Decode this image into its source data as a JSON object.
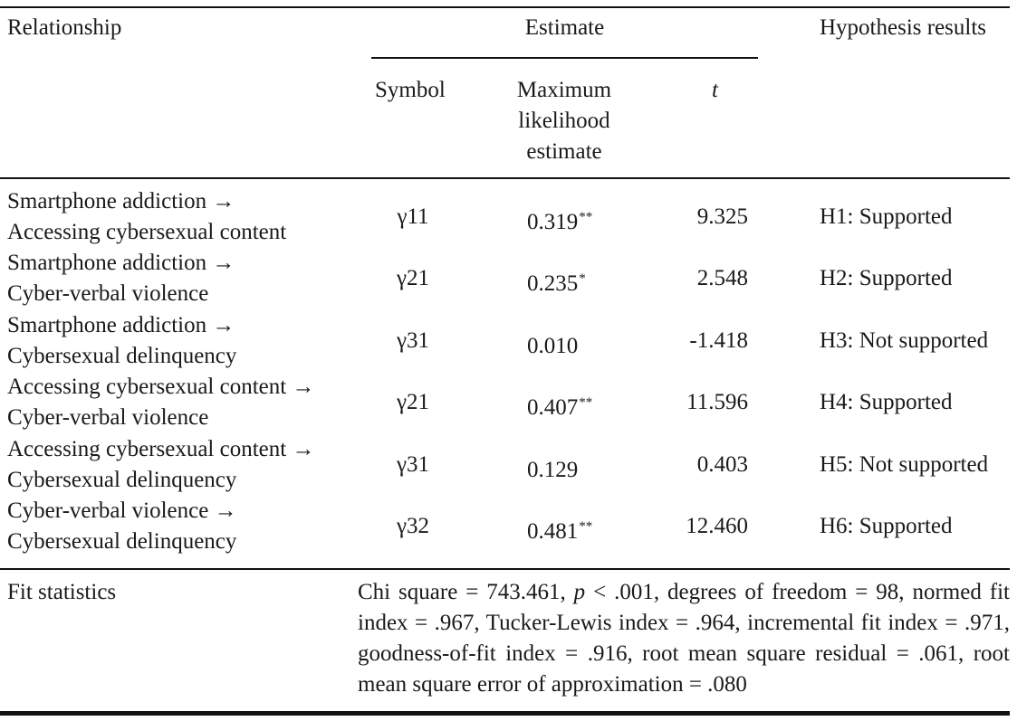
{
  "header": {
    "relationship": "Relationship",
    "estimate": "Estimate",
    "hypothesis_results": "Hypothesis results",
    "symbol": "Symbol",
    "mle": "Maximum likelihood estimate",
    "t": "t"
  },
  "rows": [
    {
      "rel_line1": "Smartphone addiction →",
      "rel_line2": "Accessing cybersexual content",
      "symbol": "γ11",
      "mle": "0.319",
      "sig": "**",
      "t": "9.325",
      "hypothesis": "H1: Supported"
    },
    {
      "rel_line1": "Smartphone addiction →",
      "rel_line2": "Cyber-verbal violence",
      "symbol": "γ21",
      "mle": "0.235",
      "sig": "*",
      "t": "2.548",
      "hypothesis": "H2: Supported"
    },
    {
      "rel_line1": "Smartphone addiction →",
      "rel_line2": "Cybersexual delinquency",
      "symbol": "γ31",
      "mle": "0.010",
      "sig": "",
      "t": "-1.418",
      "hypothesis": "H3: Not supported"
    },
    {
      "rel_line1": "Accessing cybersexual content →",
      "rel_line2": "Cyber-verbal violence",
      "symbol": "γ21",
      "mle": "0.407",
      "sig": "**",
      "t": "11.596",
      "hypothesis": "H4: Supported"
    },
    {
      "rel_line1": "Accessing cybersexual content →",
      "rel_line2": "Cybersexual delinquency",
      "symbol": "γ31",
      "mle": "0.129",
      "sig": "",
      "t": "0.403",
      "hypothesis": "H5: Not supported"
    },
    {
      "rel_line1": "Cyber-verbal violence →",
      "rel_line2": "Cybersexual delinquency",
      "symbol": "γ32",
      "mle": "0.481",
      "sig": "**",
      "t": "12.460",
      "hypothesis": "H6: Supported"
    }
  ],
  "fit": {
    "label": "Fit statistics",
    "pre": "Chi square = 743.461, ",
    "p_symbol": "p",
    "post": " < .001, degrees of freedom = 98, normed fit index = .967, Tucker-Lewis index = .964, incremental fit index = .971, goodness-of-fit index = .916, root mean square residual = .061, root mean square error of approximation = .080"
  }
}
